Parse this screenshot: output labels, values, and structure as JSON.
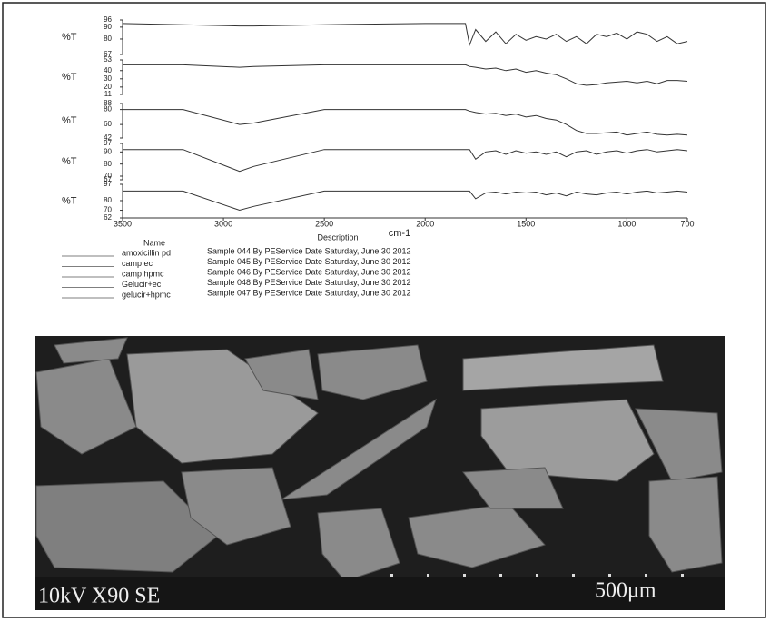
{
  "chart_data": [
    {
      "type": "line",
      "ylabel": "%T",
      "ylim": [
        67,
        96
      ],
      "yticks": [
        96,
        90,
        80,
        67
      ],
      "xlim": [
        3500,
        700
      ],
      "x": [
        3500,
        3200,
        2920,
        2850,
        2500,
        2000,
        1800,
        1780,
        1750,
        1700,
        1650,
        1600,
        1550,
        1500,
        1450,
        1400,
        1350,
        1300,
        1250,
        1200,
        1150,
        1100,
        1050,
        1000,
        950,
        900,
        850,
        800,
        750,
        700
      ],
      "series": [
        {
          "color": "#333333",
          "values": [
            93,
            92,
            91,
            91,
            92,
            93,
            93,
            75,
            88,
            78,
            86,
            76,
            84,
            79,
            82,
            80,
            84,
            78,
            82,
            76,
            84,
            82,
            85,
            80,
            86,
            84,
            78,
            82,
            76,
            78
          ]
        }
      ]
    },
    {
      "type": "line",
      "ylabel": "%T",
      "ylim": [
        11,
        53
      ],
      "yticks": [
        53,
        40,
        30,
        20,
        11
      ],
      "xlim": [
        3500,
        700
      ],
      "x": [
        3500,
        3200,
        2920,
        2850,
        2500,
        2000,
        1800,
        1780,
        1750,
        1700,
        1650,
        1600,
        1550,
        1500,
        1450,
        1400,
        1350,
        1300,
        1250,
        1200,
        1150,
        1100,
        1050,
        1000,
        950,
        900,
        850,
        800,
        750,
        700
      ],
      "series": [
        {
          "color": "#333333",
          "values": [
            47,
            47,
            44,
            45,
            47,
            47,
            47,
            45,
            44,
            42,
            43,
            40,
            42,
            38,
            40,
            37,
            35,
            30,
            24,
            22,
            23,
            25,
            26,
            27,
            25,
            27,
            24,
            28,
            28,
            27
          ]
        }
      ]
    },
    {
      "type": "line",
      "ylabel": "%T",
      "ylim": [
        42,
        88
      ],
      "yticks": [
        88,
        80,
        60,
        42
      ],
      "xlim": [
        3500,
        700
      ],
      "x": [
        3500,
        3200,
        2920,
        2850,
        2500,
        2000,
        1800,
        1780,
        1750,
        1700,
        1650,
        1600,
        1550,
        1500,
        1450,
        1400,
        1350,
        1300,
        1250,
        1200,
        1150,
        1100,
        1050,
        1000,
        950,
        900,
        850,
        800,
        750,
        700
      ],
      "series": [
        {
          "color": "#333333",
          "values": [
            80,
            80,
            60,
            62,
            80,
            80,
            80,
            78,
            76,
            74,
            75,
            72,
            74,
            70,
            72,
            68,
            66,
            60,
            52,
            48,
            48,
            49,
            50,
            46,
            48,
            50,
            47,
            46,
            47,
            46
          ]
        }
      ]
    },
    {
      "type": "line",
      "ylabel": "%T",
      "ylim": [
        67,
        97
      ],
      "yticks": [
        97,
        90,
        80,
        70,
        67
      ],
      "xlim": [
        3500,
        700
      ],
      "x": [
        3500,
        3200,
        2920,
        2850,
        2500,
        2000,
        1800,
        1780,
        1750,
        1700,
        1650,
        1600,
        1550,
        1500,
        1450,
        1400,
        1350,
        1300,
        1250,
        1200,
        1150,
        1100,
        1050,
        1000,
        950,
        900,
        850,
        800,
        750,
        700
      ],
      "series": [
        {
          "color": "#333333",
          "values": [
            92,
            92,
            74,
            78,
            92,
            92,
            92,
            92,
            84,
            90,
            91,
            88,
            91,
            89,
            90,
            88,
            90,
            86,
            90,
            91,
            88,
            90,
            91,
            89,
            91,
            92,
            90,
            91,
            92,
            91
          ]
        }
      ]
    },
    {
      "type": "line",
      "ylabel": "%T",
      "ylim": [
        62,
        97
      ],
      "yticks": [
        97,
        80,
        70,
        62
      ],
      "xlim": [
        3500,
        700
      ],
      "xticks": [
        3500,
        3000,
        2500,
        2000,
        1500,
        1000,
        700
      ],
      "xlabel": "cm-1",
      "x": [
        3500,
        3200,
        2920,
        2850,
        2500,
        2000,
        1800,
        1780,
        1750,
        1700,
        1650,
        1600,
        1550,
        1500,
        1450,
        1400,
        1350,
        1300,
        1250,
        1200,
        1150,
        1100,
        1050,
        1000,
        950,
        900,
        850,
        800,
        750,
        700
      ],
      "series": [
        {
          "color": "#333333",
          "values": [
            90,
            90,
            70,
            74,
            90,
            90,
            90,
            90,
            82,
            88,
            89,
            87,
            89,
            88,
            89,
            86,
            88,
            85,
            89,
            87,
            86,
            88,
            89,
            87,
            89,
            90,
            88,
            89,
            90,
            89
          ]
        }
      ]
    }
  ],
  "legend": {
    "name_header": "Name",
    "description_header": "Description",
    "rows": [
      {
        "name": "amoxicillin pd",
        "description": "Sample 044 By PEService Date Saturday, June 30 2012"
      },
      {
        "name": "camp ec",
        "description": "Sample 045 By PEService Date Saturday, June 30 2012"
      },
      {
        "name": "camp hpmc",
        "description": "Sample 046 By PEService Date Saturday, June 30 2012"
      },
      {
        "name": "Gelucir+ec",
        "description": "Sample 048 By PEService Date Saturday, June 30 2012"
      },
      {
        "name": "gelucir+hpmc",
        "description": "Sample 047 By PEService Date Saturday, June 30 2012"
      }
    ]
  },
  "sem_image": {
    "settings": "10kV X90 SE",
    "scale": "500μm"
  }
}
